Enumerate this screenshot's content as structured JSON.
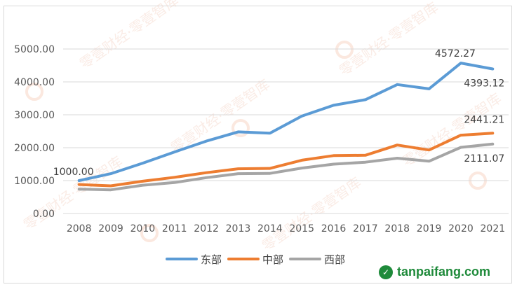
{
  "brand": {
    "text": "tanpaifang.com",
    "icon": "leaf-badge-icon",
    "color": "#1e8a3a"
  },
  "watermark": {
    "text": "零壹财经·零壹智库"
  },
  "chart_data": {
    "type": "line",
    "title": "",
    "xlabel": "",
    "ylabel": "",
    "x": [
      "2008",
      "2009",
      "2010",
      "2011",
      "2012",
      "2013",
      "2014",
      "2015",
      "2016",
      "2017",
      "2018",
      "2019",
      "2020",
      "2021"
    ],
    "ylim": [
      0,
      5000
    ],
    "yticks": [
      "0.00",
      "1000.00",
      "2000.00",
      "3000.00",
      "4000.00",
      "5000.00"
    ],
    "grid": true,
    "legend": "bottom",
    "series": [
      {
        "name": "东部",
        "color": "#5b9bd5",
        "values": [
          1000,
          1210,
          1530,
          1870,
          2200,
          2480,
          2440,
          2960,
          3290,
          3460,
          3920,
          3790,
          4572.27,
          4393.12
        ]
      },
      {
        "name": "中部",
        "color": "#ed7d31",
        "values": [
          880,
          840,
          980,
          1100,
          1240,
          1360,
          1370,
          1620,
          1760,
          1770,
          2080,
          1930,
          2380,
          2441.21
        ]
      },
      {
        "name": "西部",
        "color": "#a5a5a5",
        "values": [
          740,
          720,
          860,
          940,
          1090,
          1210,
          1220,
          1380,
          1500,
          1560,
          1680,
          1590,
          2010,
          2111.07
        ]
      }
    ],
    "annotations": [
      {
        "series": 0,
        "index": 0,
        "text": "1000.00"
      },
      {
        "series": 0,
        "index": 12,
        "text": "4572.27"
      },
      {
        "series": 0,
        "index": 13,
        "text": "4393.12"
      },
      {
        "series": 1,
        "index": 13,
        "text": "2441.21"
      },
      {
        "series": 2,
        "index": 13,
        "text": "2111.07"
      }
    ]
  }
}
